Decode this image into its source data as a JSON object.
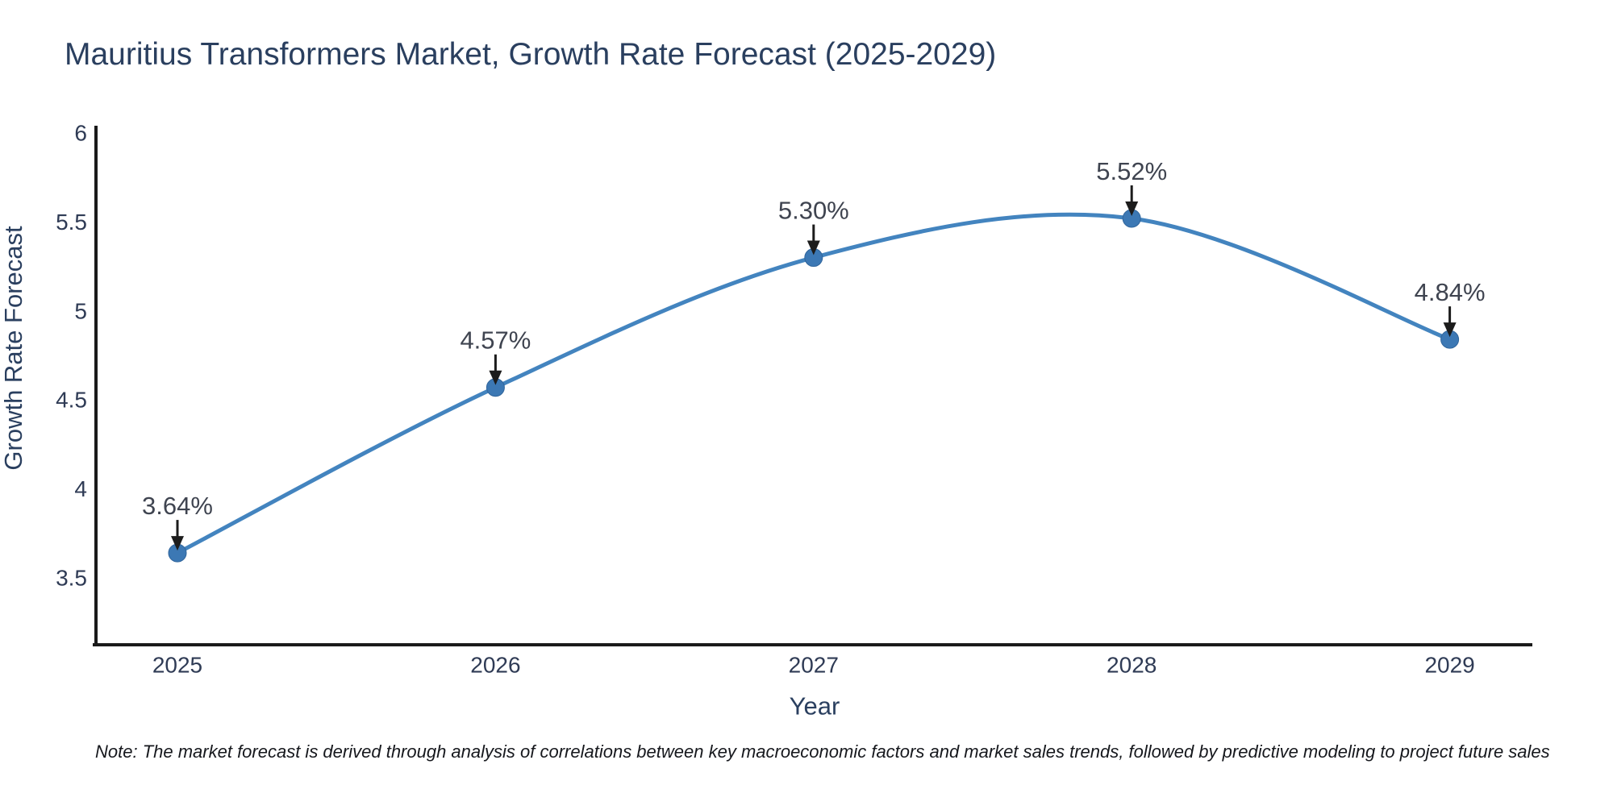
{
  "page": {
    "note": "Note: The market forecast is derived through analysis of correlations between key macroeconomic factors and market sales trends, followed by predictive modeling to project future sales"
  },
  "chart_data": {
    "type": "line",
    "title": "Mauritius Transformers Market, Growth Rate Forecast (2025-2029)",
    "xlabel": "Year",
    "ylabel": "Growth Rate Forecast",
    "categories": [
      "2025",
      "2026",
      "2027",
      "2028",
      "2029"
    ],
    "series": [
      {
        "name": "Growth Rate Forecast",
        "values": [
          3.64,
          4.57,
          5.3,
          5.52,
          4.84
        ],
        "labels": [
          "3.64%",
          "4.57%",
          "5.30%",
          "5.52%",
          "4.84%"
        ]
      }
    ],
    "line_shape": "spline",
    "markers": true,
    "annotation_arrows": true,
    "yticks": [
      3.5,
      4,
      4.5,
      5,
      5.5,
      6
    ],
    "ylim": [
      3.12,
      6
    ],
    "grid": false,
    "legend_position": "none",
    "colors": {
      "line": "#4384bf",
      "marker": "#3c78b4",
      "marker_edge": "#30659c",
      "axis": "#1a1a1a",
      "title_text": "#2a3f5f",
      "tick_text": "#2f3b55",
      "annotation_text": "#3f4450",
      "arrow": "#1c1c1c",
      "note_text": "#16181d",
      "background": "#ffffff"
    }
  }
}
